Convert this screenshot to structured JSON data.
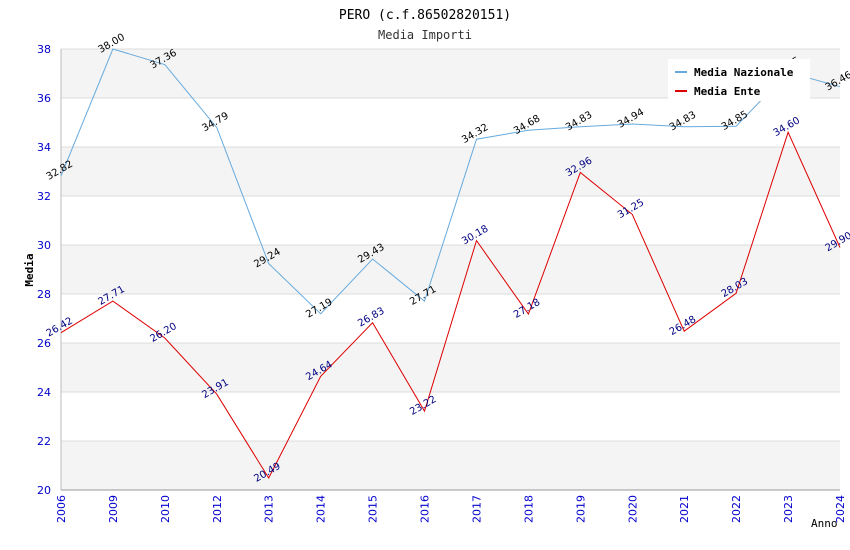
{
  "chart_data": {
    "type": "line",
    "title": "PERO (c.f.86502820151)",
    "subtitle": "Media Importi",
    "xlabel": "Anno",
    "ylabel": "Media",
    "ylim": [
      20,
      38
    ],
    "yticks": [
      20,
      22,
      24,
      26,
      28,
      30,
      32,
      34,
      36,
      38
    ],
    "grid": true,
    "legend_position": "top-right",
    "categories": [
      "2006",
      "2009",
      "2010",
      "2012",
      "2013",
      "2014",
      "2015",
      "2016",
      "2017",
      "2018",
      "2019",
      "2020",
      "2021",
      "2022",
      "2023",
      "2024"
    ],
    "series": [
      {
        "name": "Media Nazionale",
        "color": "#66aadd",
        "label_color": "#000000",
        "values": [
          32.82,
          38.0,
          37.36,
          34.79,
          29.24,
          27.19,
          29.43,
          27.71,
          34.32,
          34.68,
          34.83,
          34.94,
          34.83,
          34.85,
          37.05,
          36.46
        ]
      },
      {
        "name": "Media Ente",
        "color": "#dd0000",
        "label_color": "#000080",
        "values": [
          26.42,
          27.71,
          26.2,
          23.91,
          20.49,
          24.64,
          26.83,
          23.22,
          30.18,
          27.18,
          32.96,
          31.25,
          26.48,
          28.03,
          34.6,
          29.9
        ]
      }
    ]
  }
}
